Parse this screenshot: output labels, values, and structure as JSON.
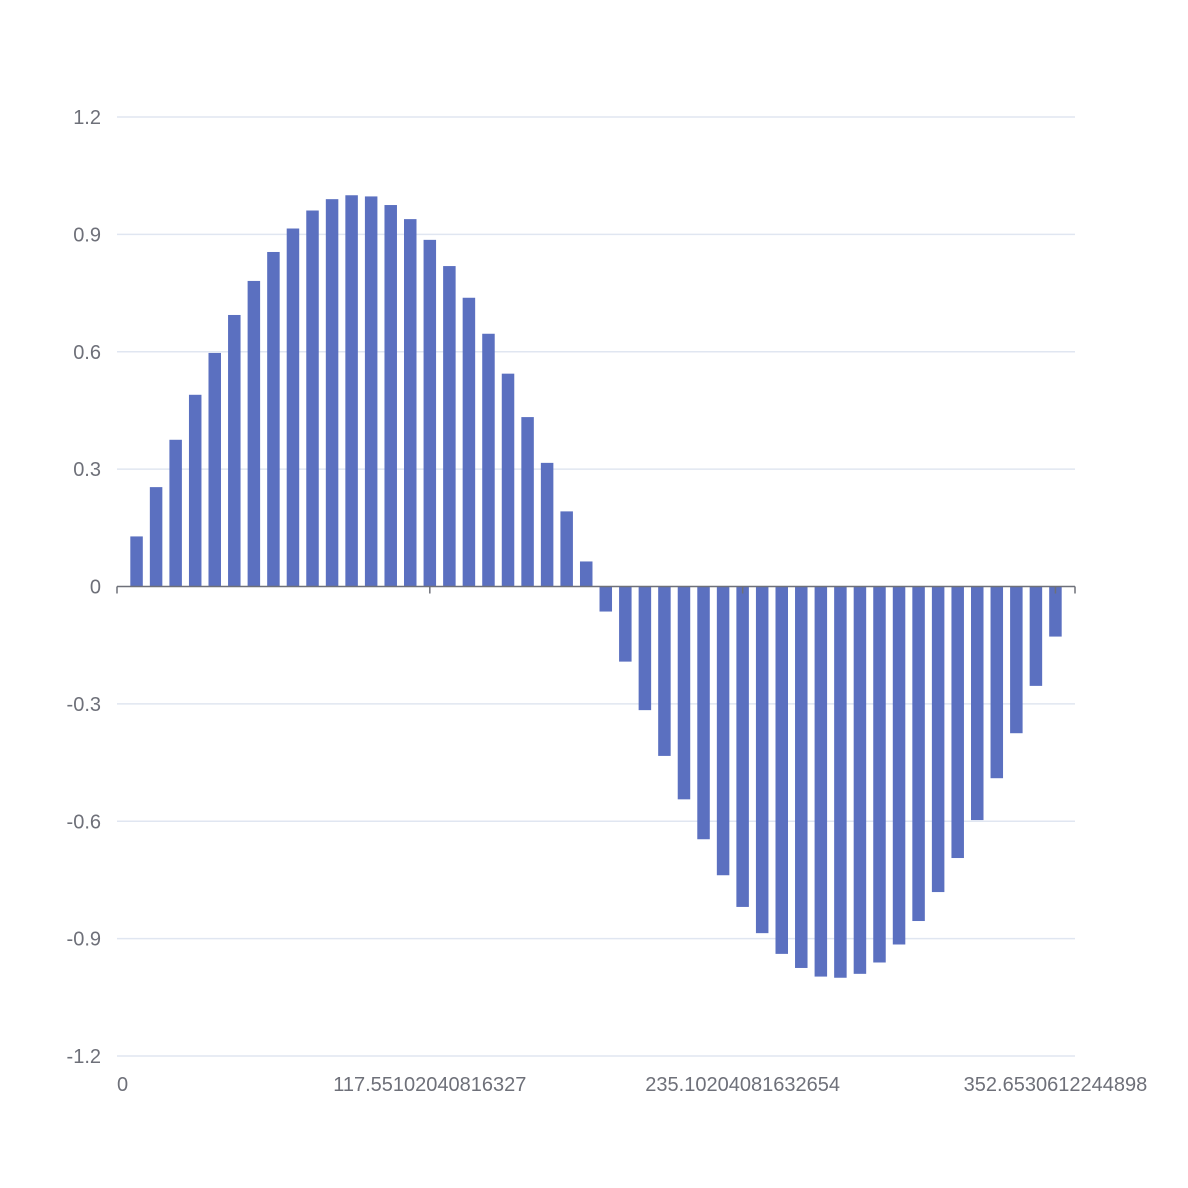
{
  "colors": {
    "bar": "#5b70c0",
    "grid": "#e0e6f1",
    "axis": "#6e7079",
    "label": "#6e7079"
  },
  "chart_data": {
    "type": "bar",
    "title": "",
    "xlabel": "",
    "ylabel": "",
    "grid": true,
    "legend": "none",
    "xlim": [
      0,
      360
    ],
    "ylim": [
      -1.2,
      1.2
    ],
    "x_ticks": [
      0,
      117.55102040816327,
      235.10204081632654,
      352.6530612244898
    ],
    "x_tick_labels": [
      "0",
      "117.55102040816327",
      "235.10204081632654",
      "352.6530612244898"
    ],
    "y_ticks": [
      1.2,
      0.9,
      0.6,
      0.3,
      0,
      -0.3,
      -0.6,
      -0.9,
      -1.2
    ],
    "y_tick_labels": [
      "1.2",
      "0.9",
      "0.6",
      "0.3",
      "0",
      "-0.3",
      "-0.6",
      "-0.9",
      "-1.2"
    ],
    "x": [
      7.35,
      14.69,
      22.04,
      29.39,
      36.73,
      44.08,
      51.43,
      58.78,
      66.12,
      73.47,
      80.82,
      88.16,
      95.51,
      102.86,
      110.2,
      117.55,
      124.9,
      132.24,
      139.59,
      146.94,
      154.29,
      161.63,
      168.98,
      176.33,
      183.67,
      191.02,
      198.37,
      205.71,
      213.06,
      220.41,
      227.76,
      235.1,
      242.45,
      249.8,
      257.14,
      264.49,
      271.84,
      279.18,
      286.53,
      293.88,
      301.22,
      308.57,
      315.92,
      323.27,
      330.61,
      337.96,
      345.31,
      352.65
    ],
    "values": [
      0.128,
      0.254,
      0.375,
      0.49,
      0.597,
      0.694,
      0.781,
      0.855,
      0.915,
      0.961,
      0.99,
      1.0,
      0.997,
      0.975,
      0.939,
      0.886,
      0.819,
      0.738,
      0.646,
      0.544,
      0.433,
      0.316,
      0.192,
      0.064,
      -0.064,
      -0.192,
      -0.316,
      -0.433,
      -0.544,
      -0.646,
      -0.738,
      -0.819,
      -0.886,
      -0.939,
      -0.975,
      -0.997,
      -1.0,
      -0.99,
      -0.961,
      -0.915,
      -0.855,
      -0.781,
      -0.694,
      -0.597,
      -0.49,
      -0.375,
      -0.254,
      -0.128
    ]
  }
}
